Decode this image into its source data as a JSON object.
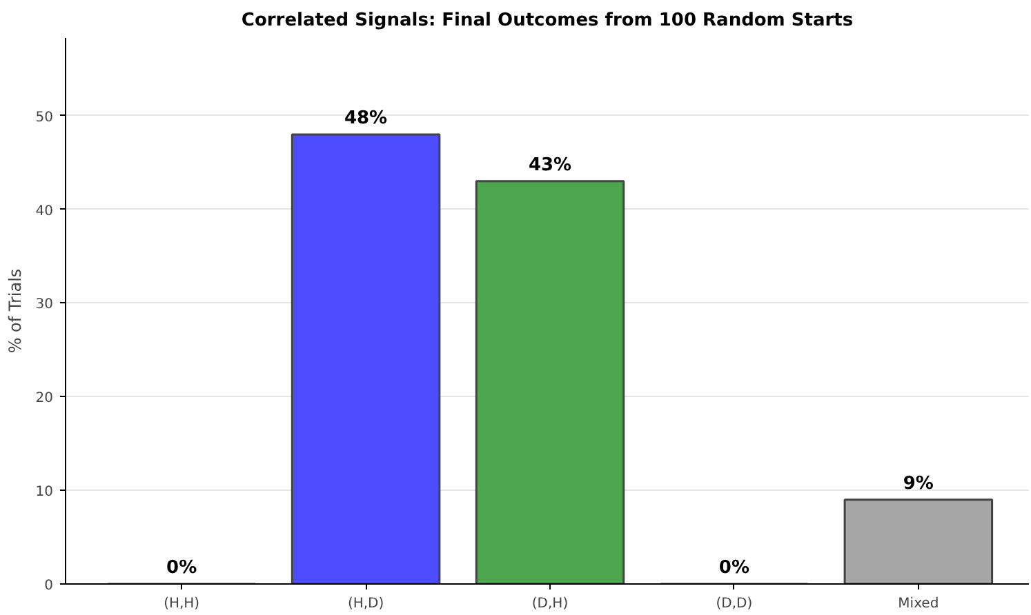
{
  "chart_data": {
    "type": "bar",
    "title": "Correlated Signals: Final Outcomes from 100 Random Starts",
    "ylabel": "% of Trials",
    "categories": [
      "(H,H)",
      "(H,D)",
      "(D,H)",
      "(D,D)",
      "Mixed"
    ],
    "values": [
      0,
      48,
      43,
      0,
      9
    ],
    "colors": [
      null,
      "#4d4dff",
      "#4da64d",
      null,
      "#a6a6a6"
    ],
    "value_labels": [
      "0%",
      "48%",
      "43%",
      "0%",
      "9%"
    ],
    "ylim": [
      0,
      58.3
    ],
    "yticks": [
      0,
      10,
      20,
      30,
      40,
      50
    ],
    "grid": "y"
  }
}
